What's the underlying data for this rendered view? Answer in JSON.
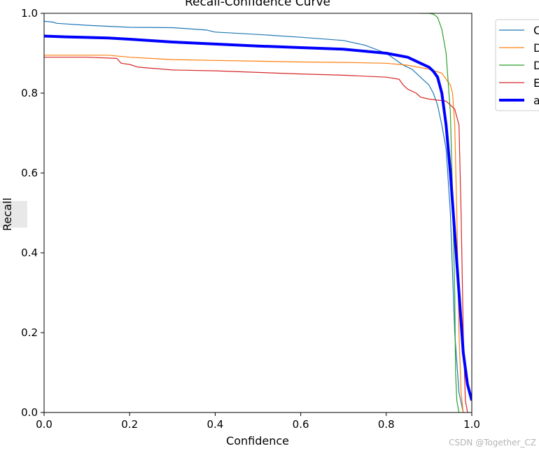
{
  "chart_data": {
    "type": "line",
    "title": "Recall-Confidence Curve",
    "xlabel": "Confidence",
    "ylabel": "Recall",
    "xlim": [
      0,
      1
    ],
    "ylim": [
      0,
      1
    ],
    "xticks": [
      "0.0",
      "0.2",
      "0.4",
      "0.6",
      "0.8",
      "1.0"
    ],
    "yticks": [
      "0.0",
      "0.2",
      "0.4",
      "0.6",
      "0.8",
      "1.0"
    ],
    "grid": false,
    "legend_position": "outside-top-right",
    "series": [
      {
        "name": "C",
        "color": "#1f77b4",
        "linewidth": 1.2,
        "points": [
          [
            0,
            0.98
          ],
          [
            0.02,
            0.978
          ],
          [
            0.03,
            0.975
          ],
          [
            0.1,
            0.97
          ],
          [
            0.2,
            0.965
          ],
          [
            0.3,
            0.964
          ],
          [
            0.38,
            0.958
          ],
          [
            0.4,
            0.953
          ],
          [
            0.5,
            0.947
          ],
          [
            0.6,
            0.94
          ],
          [
            0.7,
            0.932
          ],
          [
            0.75,
            0.92
          ],
          [
            0.8,
            0.9
          ],
          [
            0.82,
            0.885
          ],
          [
            0.84,
            0.87
          ],
          [
            0.86,
            0.86
          ],
          [
            0.88,
            0.84
          ],
          [
            0.9,
            0.82
          ],
          [
            0.91,
            0.8
          ],
          [
            0.92,
            0.77
          ],
          [
            0.93,
            0.72
          ],
          [
            0.94,
            0.66
          ],
          [
            0.95,
            0.5
          ],
          [
            0.96,
            0.2
          ],
          [
            0.97,
            0.05
          ],
          [
            0.98,
            0
          ]
        ]
      },
      {
        "name": "D",
        "color": "#ff7f0e",
        "linewidth": 1.2,
        "points": [
          [
            0,
            0.895
          ],
          [
            0.15,
            0.895
          ],
          [
            0.2,
            0.89
          ],
          [
            0.3,
            0.884
          ],
          [
            0.4,
            0.882
          ],
          [
            0.5,
            0.88
          ],
          [
            0.6,
            0.878
          ],
          [
            0.7,
            0.877
          ],
          [
            0.8,
            0.875
          ],
          [
            0.85,
            0.87
          ],
          [
            0.9,
            0.86
          ],
          [
            0.93,
            0.85
          ],
          [
            0.95,
            0.82
          ],
          [
            0.955,
            0.8
          ],
          [
            0.96,
            0.72
          ],
          [
            0.965,
            0.5
          ],
          [
            0.97,
            0.2
          ],
          [
            0.975,
            0.05
          ],
          [
            0.98,
            0
          ]
        ]
      },
      {
        "name": "D",
        "color": "#2ca02c",
        "linewidth": 1.2,
        "points": [
          [
            0.88,
            1.0
          ],
          [
            0.9,
            1.0
          ],
          [
            0.91,
            0.998
          ],
          [
            0.92,
            0.99
          ],
          [
            0.93,
            0.96
          ],
          [
            0.94,
            0.9
          ],
          [
            0.95,
            0.75
          ],
          [
            0.955,
            0.55
          ],
          [
            0.96,
            0.3
          ],
          [
            0.962,
            0.1
          ],
          [
            0.965,
            0.03
          ],
          [
            0.97,
            0
          ]
        ]
      },
      {
        "name": "E",
        "color": "#d62728",
        "linewidth": 1.2,
        "points": [
          [
            0,
            0.89
          ],
          [
            0.1,
            0.89
          ],
          [
            0.17,
            0.887
          ],
          [
            0.18,
            0.875
          ],
          [
            0.2,
            0.872
          ],
          [
            0.22,
            0.865
          ],
          [
            0.3,
            0.858
          ],
          [
            0.4,
            0.856
          ],
          [
            0.5,
            0.852
          ],
          [
            0.6,
            0.848
          ],
          [
            0.7,
            0.845
          ],
          [
            0.8,
            0.84
          ],
          [
            0.83,
            0.835
          ],
          [
            0.84,
            0.82
          ],
          [
            0.85,
            0.81
          ],
          [
            0.87,
            0.8
          ],
          [
            0.88,
            0.79
          ],
          [
            0.9,
            0.785
          ],
          [
            0.94,
            0.78
          ],
          [
            0.96,
            0.76
          ],
          [
            0.97,
            0.72
          ],
          [
            0.975,
            0.5
          ],
          [
            0.98,
            0.2
          ],
          [
            0.985,
            0.03
          ],
          [
            0.99,
            0
          ]
        ]
      },
      {
        "name": "a",
        "color": "#0000ff",
        "linewidth": 4,
        "points": [
          [
            0,
            0.943
          ],
          [
            0.05,
            0.941
          ],
          [
            0.15,
            0.938
          ],
          [
            0.2,
            0.935
          ],
          [
            0.3,
            0.928
          ],
          [
            0.4,
            0.923
          ],
          [
            0.5,
            0.918
          ],
          [
            0.6,
            0.914
          ],
          [
            0.7,
            0.91
          ],
          [
            0.8,
            0.9
          ],
          [
            0.85,
            0.89
          ],
          [
            0.88,
            0.875
          ],
          [
            0.9,
            0.865
          ],
          [
            0.91,
            0.855
          ],
          [
            0.92,
            0.84
          ],
          [
            0.93,
            0.8
          ],
          [
            0.94,
            0.72
          ],
          [
            0.95,
            0.6
          ],
          [
            0.96,
            0.45
          ],
          [
            0.97,
            0.3
          ],
          [
            0.98,
            0.15
          ],
          [
            0.99,
            0.07
          ],
          [
            1.0,
            0.03
          ]
        ]
      }
    ]
  },
  "watermark": "CSDN @Together_CZ"
}
